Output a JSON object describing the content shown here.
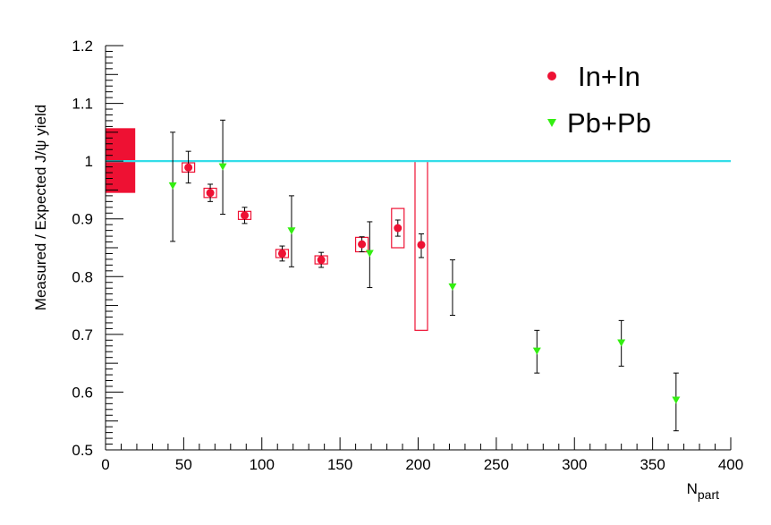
{
  "chart_data": {
    "type": "scatter",
    "title": "",
    "xlabel": "N",
    "xlabel_sub": "part",
    "ylabel": "Measured / Expected J/ψ yield",
    "xlim": [
      0,
      400
    ],
    "ylim": [
      0.5,
      1.2
    ],
    "x_ticks": [
      "0",
      "50",
      "100",
      "150",
      "200",
      "250",
      "300",
      "350",
      "400"
    ],
    "y_ticks": [
      "0.5",
      "0.6",
      "0.7",
      "0.8",
      "0.9",
      "1",
      "1.1",
      "1.2"
    ],
    "grid": false,
    "legend_position": "top-right",
    "reference_line": {
      "y": 1.0,
      "color": "#33dde8"
    },
    "global_uncertainty": {
      "x_range": [
        0,
        19
      ],
      "y_range": [
        0.945,
        1.057
      ],
      "color": "#ee1133"
    },
    "series": [
      {
        "name": "In+In",
        "marker": "circle",
        "color": "#ee1133",
        "points": [
          {
            "x": 53,
            "y": 0.989,
            "stat": [
              0.962,
              1.017
            ],
            "sys": [
              0.981,
              0.997
            ]
          },
          {
            "x": 67,
            "y": 0.945,
            "stat": [
              0.93,
              0.96
            ],
            "sys": [
              0.937,
              0.953
            ]
          },
          {
            "x": 89,
            "y": 0.906,
            "stat": [
              0.892,
              0.92
            ],
            "sys": [
              0.899,
              0.913
            ]
          },
          {
            "x": 113,
            "y": 0.84,
            "stat": [
              0.827,
              0.853
            ],
            "sys": [
              0.833,
              0.847
            ]
          },
          {
            "x": 138,
            "y": 0.829,
            "stat": [
              0.816,
              0.842
            ],
            "sys": [
              0.822,
              0.836
            ]
          },
          {
            "x": 164,
            "y": 0.856,
            "stat": [
              0.843,
              0.869
            ],
            "sys": [
              0.843,
              0.868
            ]
          },
          {
            "x": 187,
            "y": 0.884,
            "stat": [
              0.87,
              0.898
            ],
            "sys": [
              0.85,
              0.918
            ]
          },
          {
            "x": 202,
            "y": 0.855,
            "stat": [
              0.833,
              0.874
            ],
            "sys": [
              0.707,
              1.0
            ]
          }
        ]
      },
      {
        "name": "Pb+Pb",
        "marker": "triangle-down",
        "color": "#33ee11",
        "points": [
          {
            "x": 43,
            "y": 0.957,
            "stat": [
              0.861,
              1.05
            ]
          },
          {
            "x": 75,
            "y": 0.99,
            "stat": [
              0.908,
              1.071
            ]
          },
          {
            "x": 119,
            "y": 0.879,
            "stat": [
              0.817,
              0.94
            ]
          },
          {
            "x": 169,
            "y": 0.84,
            "stat": [
              0.781,
              0.895
            ]
          },
          {
            "x": 222,
            "y": 0.782,
            "stat": [
              0.733,
              0.829
            ]
          },
          {
            "x": 276,
            "y": 0.671,
            "stat": [
              0.633,
              0.707
            ]
          },
          {
            "x": 330,
            "y": 0.685,
            "stat": [
              0.645,
              0.724
            ]
          },
          {
            "x": 365,
            "y": 0.586,
            "stat": [
              0.533,
              0.633
            ]
          }
        ]
      }
    ]
  }
}
